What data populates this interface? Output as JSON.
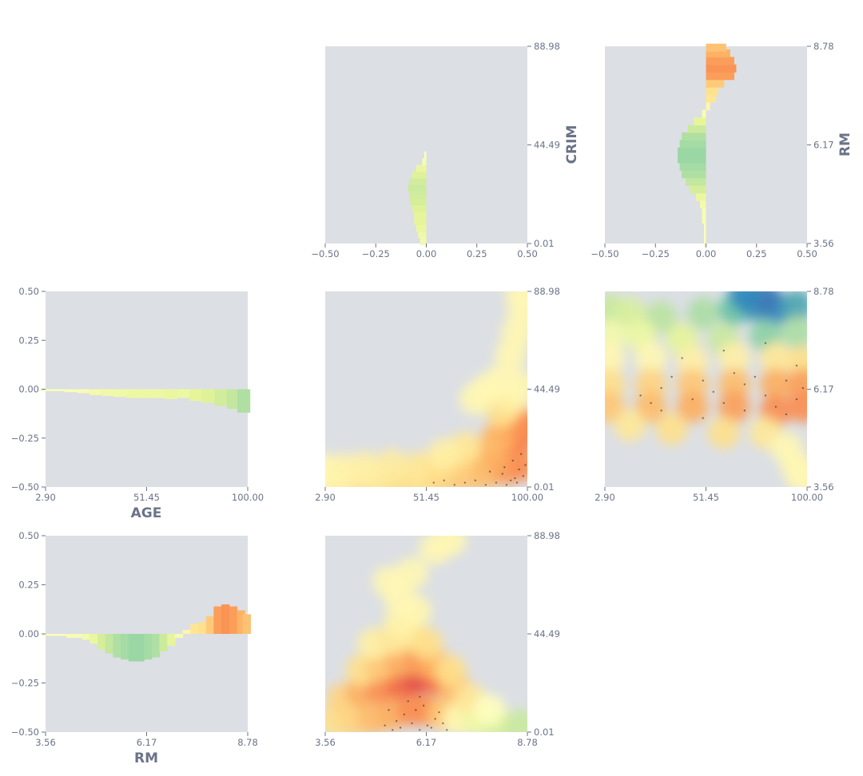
{
  "colors": {
    "panel_bg": "#dcdfe4",
    "text": "#6b7388",
    "palette": [
      "#9e0142",
      "#d53e4f",
      "#f46d43",
      "#fdae61",
      "#fee08b",
      "#ffffbf",
      "#e6f598",
      "#abdda4",
      "#66c2a5",
      "#3288bd",
      "#5e4fa2"
    ]
  },
  "chart_data": [
    {
      "id": "pdp-crim",
      "type": "bar",
      "orientation": "horizontal",
      "feature": "CRIM",
      "ylabel": "CRIM",
      "ylim": [
        0.01,
        88.98
      ],
      "yticks": [
        "0.01",
        "44.49",
        "88.98"
      ],
      "xlim": [
        -0.5,
        0.5
      ],
      "xticks": [
        "−0.50",
        "−0.25",
        "0.00",
        "0.25",
        "0.50"
      ],
      "y": [
        1,
        4,
        7,
        10,
        13,
        16,
        19,
        22,
        25,
        28,
        31,
        34,
        37,
        40
      ],
      "values": [
        -0.03,
        -0.04,
        -0.05,
        -0.06,
        -0.06,
        -0.07,
        -0.08,
        -0.085,
        -0.09,
        -0.085,
        -0.07,
        -0.05,
        -0.02,
        -0.01
      ]
    },
    {
      "id": "pdp-rm-top",
      "type": "bar",
      "orientation": "horizontal",
      "feature": "RM",
      "ylabel": "RM",
      "ylim": [
        3.56,
        8.78
      ],
      "yticks": [
        "3.56",
        "6.17",
        "8.78"
      ],
      "xlim": [
        -0.5,
        0.5
      ],
      "xticks": [
        "−0.50",
        "−0.25",
        "0.00",
        "0.25",
        "0.50"
      ],
      "y": [
        3.6,
        3.8,
        4.0,
        4.2,
        4.4,
        4.6,
        4.8,
        5.0,
        5.2,
        5.4,
        5.6,
        5.8,
        6.0,
        6.2,
        6.4,
        6.6,
        6.8,
        7.0,
        7.2,
        7.4,
        7.6,
        7.8,
        8.0,
        8.2,
        8.4,
        8.6,
        8.75
      ],
      "values": [
        -0.01,
        -0.01,
        -0.01,
        -0.02,
        -0.02,
        -0.03,
        -0.05,
        -0.08,
        -0.1,
        -0.12,
        -0.13,
        -0.14,
        -0.14,
        -0.13,
        -0.12,
        -0.09,
        -0.06,
        -0.02,
        0.02,
        0.05,
        0.06,
        0.09,
        0.14,
        0.15,
        0.14,
        0.12,
        0.1
      ]
    },
    {
      "id": "pdp-age",
      "type": "bar",
      "feature": "AGE",
      "xlabel": "AGE",
      "xlim": [
        2.9,
        100.0
      ],
      "xticks": [
        "2.90",
        "51.45",
        "100.00"
      ],
      "ylim": [
        -0.5,
        0.5
      ],
      "yticks": [
        "0.50",
        "0.25",
        "0.00",
        "−0.25",
        "−0.50"
      ],
      "x": [
        3,
        9,
        15,
        21,
        27,
        33,
        39,
        45,
        51,
        57,
        63,
        69,
        75,
        81,
        87,
        93,
        98
      ],
      "values": [
        -0.01,
        -0.01,
        -0.015,
        -0.02,
        -0.03,
        -0.035,
        -0.04,
        -0.045,
        -0.045,
        -0.045,
        -0.05,
        -0.045,
        -0.06,
        -0.07,
        -0.085,
        -0.1,
        -0.12
      ]
    },
    {
      "id": "pdp-rm-bottom",
      "type": "bar",
      "feature": "RM",
      "xlabel": "RM",
      "xlim": [
        3.56,
        8.78
      ],
      "xticks": [
        "3.56",
        "6.17",
        "8.78"
      ],
      "ylim": [
        -0.5,
        0.5
      ],
      "yticks": [
        "0.50",
        "0.25",
        "0.00",
        "−0.25",
        "−0.50"
      ],
      "x": [
        3.6,
        3.8,
        4.0,
        4.2,
        4.4,
        4.6,
        4.8,
        5.0,
        5.2,
        5.4,
        5.6,
        5.8,
        6.0,
        6.2,
        6.4,
        6.6,
        6.8,
        7.0,
        7.2,
        7.4,
        7.6,
        7.8,
        8.0,
        8.2,
        8.4,
        8.6,
        8.75
      ],
      "values": [
        -0.01,
        -0.01,
        -0.01,
        -0.02,
        -0.02,
        -0.03,
        -0.05,
        -0.08,
        -0.1,
        -0.12,
        -0.13,
        -0.14,
        -0.14,
        -0.13,
        -0.12,
        -0.09,
        -0.06,
        -0.02,
        0.02,
        0.05,
        0.06,
        0.09,
        0.14,
        0.15,
        0.14,
        0.12,
        0.1
      ]
    },
    {
      "id": "int-age-crim",
      "type": "heatmap",
      "x_feature": "AGE",
      "y_feature": "CRIM",
      "xlim": [
        2.9,
        100.0
      ],
      "xticks": [
        "2.90",
        "51.45",
        "100.00"
      ],
      "ylim": [
        0.01,
        88.98
      ],
      "yticks": [
        "0.01",
        "44.49",
        "88.98"
      ],
      "cells": [
        [
          3,
          2,
          0.1
        ],
        [
          10,
          2,
          0.1
        ],
        [
          20,
          2,
          0.15
        ],
        [
          30,
          2,
          0.15
        ],
        [
          40,
          3,
          0.2
        ],
        [
          50,
          3,
          0.2
        ],
        [
          60,
          4,
          0.25
        ],
        [
          70,
          5,
          0.3
        ],
        [
          80,
          6,
          0.35
        ],
        [
          90,
          8,
          0.45
        ],
        [
          97,
          10,
          0.5
        ],
        [
          3,
          8,
          0.05
        ],
        [
          12,
          8,
          0.08
        ],
        [
          22,
          9,
          0.1
        ],
        [
          35,
          10,
          0.12
        ],
        [
          48,
          9,
          0.15
        ],
        [
          58,
          10,
          0.2
        ],
        [
          68,
          12,
          0.25
        ],
        [
          78,
          14,
          0.35
        ],
        [
          86,
          16,
          0.4
        ],
        [
          93,
          20,
          0.5
        ],
        [
          98,
          24,
          0.55
        ],
        [
          85,
          22,
          0.35
        ],
        [
          90,
          26,
          0.4
        ],
        [
          95,
          30,
          0.45
        ],
        [
          99,
          28,
          0.5
        ],
        [
          88,
          34,
          0.2
        ],
        [
          93,
          40,
          0.1
        ],
        [
          96,
          46,
          0.05
        ],
        [
          70,
          18,
          0.15
        ],
        [
          60,
          15,
          0.1
        ],
        [
          75,
          40,
          0.05
        ],
        [
          80,
          44,
          0.05
        ],
        [
          86,
          48,
          0.05
        ],
        [
          92,
          60,
          0.05
        ],
        [
          95,
          70,
          0.05
        ],
        [
          98,
          80,
          0.05
        ],
        [
          97,
          88,
          0.05
        ]
      ],
      "points": [
        [
          90,
          1
        ],
        [
          92,
          3
        ],
        [
          95,
          2
        ],
        [
          98,
          5
        ],
        [
          85,
          2
        ],
        [
          80,
          1
        ],
        [
          75,
          3
        ],
        [
          88,
          6
        ],
        [
          96,
          8
        ],
        [
          99,
          10
        ],
        [
          93,
          12
        ],
        [
          70,
          2
        ],
        [
          65,
          1
        ],
        [
          60,
          3
        ],
        [
          55,
          2
        ],
        [
          97,
          15
        ],
        [
          94,
          4
        ],
        [
          89,
          9
        ],
        [
          82,
          7
        ]
      ]
    },
    {
      "id": "int-age-rm",
      "type": "heatmap",
      "x_feature": "AGE",
      "y_feature": "RM",
      "xlim": [
        2.9,
        100.0
      ],
      "xticks": [
        "2.90",
        "51.45",
        "100.00"
      ],
      "ylim": [
        3.56,
        8.78
      ],
      "yticks": [
        "3.56",
        "6.17",
        "8.78"
      ],
      "cells": [
        [
          5,
          8.3,
          -0.3
        ],
        [
          15,
          8.2,
          -0.25
        ],
        [
          30,
          8.1,
          -0.35
        ],
        [
          50,
          8.2,
          -0.4
        ],
        [
          65,
          8.3,
          -0.6
        ],
        [
          75,
          8.4,
          -0.75
        ],
        [
          85,
          8.3,
          -0.8
        ],
        [
          95,
          8.4,
          -0.7
        ],
        [
          80,
          8.6,
          -0.85
        ],
        [
          70,
          8.7,
          -0.8
        ],
        [
          5,
          7.6,
          -0.1
        ],
        [
          20,
          7.6,
          -0.15
        ],
        [
          40,
          7.5,
          -0.2
        ],
        [
          60,
          7.5,
          -0.3
        ],
        [
          80,
          7.6,
          -0.5
        ],
        [
          95,
          7.7,
          -0.4
        ],
        [
          5,
          7.0,
          0.05
        ],
        [
          25,
          7.0,
          0.05
        ],
        [
          45,
          6.9,
          0.1
        ],
        [
          65,
          7.0,
          0.1
        ],
        [
          85,
          7.0,
          0.15
        ],
        [
          98,
          6.9,
          0.2
        ],
        [
          5,
          6.3,
          0.2
        ],
        [
          25,
          6.3,
          0.25
        ],
        [
          45,
          6.3,
          0.3
        ],
        [
          65,
          6.3,
          0.35
        ],
        [
          85,
          6.3,
          0.4
        ],
        [
          98,
          6.3,
          0.45
        ],
        [
          5,
          5.7,
          0.3
        ],
        [
          25,
          5.7,
          0.35
        ],
        [
          45,
          5.7,
          0.4
        ],
        [
          65,
          5.7,
          0.45
        ],
        [
          85,
          5.6,
          0.5
        ],
        [
          98,
          5.7,
          0.5
        ],
        [
          15,
          5.2,
          0.15
        ],
        [
          35,
          5.1,
          0.2
        ],
        [
          60,
          5.0,
          0.2
        ],
        [
          80,
          5.0,
          0.15
        ],
        [
          90,
          4.6,
          0.05
        ],
        [
          95,
          4.1,
          0.05
        ],
        [
          98,
          3.8,
          0.05
        ]
      ],
      "points": [
        [
          20,
          6.0
        ],
        [
          30,
          6.2
        ],
        [
          45,
          5.9
        ],
        [
          55,
          6.1
        ],
        [
          60,
          5.8
        ],
        [
          70,
          6.3
        ],
        [
          80,
          6.0
        ],
        [
          90,
          6.4
        ],
        [
          95,
          5.9
        ],
        [
          98,
          6.2
        ],
        [
          85,
          5.7
        ],
        [
          75,
          6.5
        ],
        [
          65,
          6.6
        ],
        [
          50,
          6.4
        ],
        [
          35,
          6.5
        ],
        [
          25,
          5.8
        ],
        [
          40,
          7.0
        ],
        [
          60,
          7.2
        ],
        [
          80,
          7.4
        ],
        [
          95,
          6.8
        ],
        [
          90,
          5.5
        ],
        [
          70,
          5.6
        ],
        [
          50,
          5.4
        ],
        [
          30,
          5.6
        ]
      ]
    },
    {
      "id": "int-rm-crim",
      "type": "heatmap",
      "x_feature": "RM",
      "y_feature": "CRIM",
      "xlim": [
        3.56,
        8.78
      ],
      "xticks": [
        "3.56",
        "6.17",
        "8.78"
      ],
      "ylim": [
        0.01,
        88.98
      ],
      "yticks": [
        "0.01",
        "44.49",
        "88.98"
      ],
      "cells": [
        [
          3.8,
          5,
          0.2
        ],
        [
          4.3,
          5,
          0.25
        ],
        [
          4.8,
          6,
          0.35
        ],
        [
          5.3,
          8,
          0.4
        ],
        [
          5.8,
          10,
          0.5
        ],
        [
          6.2,
          10,
          0.5
        ],
        [
          6.6,
          8,
          0.3
        ],
        [
          7.0,
          6,
          0.05
        ],
        [
          7.5,
          5,
          -0.15
        ],
        [
          8.0,
          4,
          -0.25
        ],
        [
          8.6,
          3,
          -0.3
        ],
        [
          4.0,
          15,
          0.25
        ],
        [
          4.5,
          18,
          0.4
        ],
        [
          5.0,
          20,
          0.5
        ],
        [
          5.5,
          22,
          0.6
        ],
        [
          5.9,
          24,
          0.7
        ],
        [
          6.2,
          26,
          0.75
        ],
        [
          6.5,
          24,
          0.6
        ],
        [
          6.9,
          20,
          0.35
        ],
        [
          7.3,
          15,
          0.15
        ],
        [
          7.8,
          10,
          0.0
        ],
        [
          4.5,
          28,
          0.2
        ],
        [
          5.0,
          30,
          0.3
        ],
        [
          5.5,
          32,
          0.4
        ],
        [
          6.0,
          32,
          0.45
        ],
        [
          6.4,
          30,
          0.4
        ],
        [
          6.8,
          28,
          0.2
        ],
        [
          4.8,
          40,
          0.1
        ],
        [
          5.3,
          42,
          0.15
        ],
        [
          5.8,
          44,
          0.15
        ],
        [
          6.2,
          40,
          0.2
        ],
        [
          5.5,
          50,
          0.08
        ],
        [
          5.9,
          55,
          0.06
        ],
        [
          5.5,
          60,
          0.05
        ],
        [
          5.2,
          68,
          0.05
        ],
        [
          5.8,
          72,
          0.05
        ],
        [
          6.4,
          83,
          0.05
        ],
        [
          6.8,
          87,
          0.05
        ]
      ],
      "points": [
        [
          5.5,
          2
        ],
        [
          5.8,
          4
        ],
        [
          6.0,
          1
        ],
        [
          6.2,
          3
        ],
        [
          6.4,
          6
        ],
        [
          5.6,
          8
        ],
        [
          5.9,
          10
        ],
        [
          6.1,
          12
        ],
        [
          6.3,
          2
        ],
        [
          5.7,
          14
        ],
        [
          6.0,
          16
        ],
        [
          5.4,
          5
        ],
        [
          6.6,
          4
        ],
        [
          5.2,
          10
        ],
        [
          6.5,
          9
        ],
        [
          5.3,
          1
        ],
        [
          6.7,
          1
        ],
        [
          5.1,
          3
        ]
      ]
    }
  ]
}
